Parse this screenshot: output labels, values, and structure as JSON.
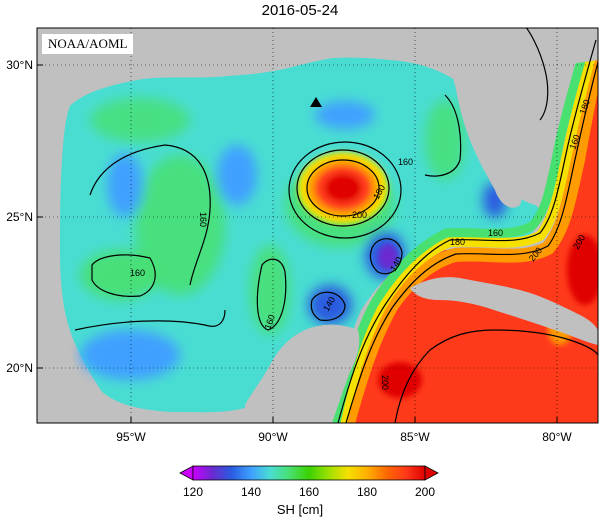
{
  "title": "2016-05-24",
  "source_label": "NOAA/AOML",
  "colorbar": {
    "label": "SH [cm]",
    "ticks": [
      "120",
      "140",
      "160",
      "180",
      "200"
    ]
  },
  "axes": {
    "lat_ticks": [
      "30°N",
      "25°N",
      "20°N"
    ],
    "lon_ticks": [
      "95°W",
      "90°W",
      "85°W",
      "80°W"
    ]
  },
  "contour_labels": [
    "160",
    "160",
    "160",
    "160",
    "180",
    "200",
    "180",
    "160",
    "140",
    "140",
    "200",
    "200",
    "160",
    "180",
    "200"
  ],
  "colors": {
    "land": "#c0c0c0",
    "base_field": "#49ddd2",
    "high": "#ff3a1a",
    "core": "#e00000",
    "low": "#2a5ce0",
    "mid_low": "#3fa0ff",
    "mid": "#48e070",
    "yellow": "#f5e000",
    "orange": "#ff9a00",
    "purple": "#6a2ad0"
  },
  "colormap": [
    "#cc00ff",
    "#6a2ad0",
    "#2a5ce0",
    "#3fa0ff",
    "#49ddd2",
    "#48e070",
    "#3ad200",
    "#9be000",
    "#f5e000",
    "#ffb000",
    "#ff6a00",
    "#ff3a1a",
    "#e00000"
  ],
  "markers": [
    {
      "name": "station-marker",
      "shape": "triangle"
    }
  ]
}
